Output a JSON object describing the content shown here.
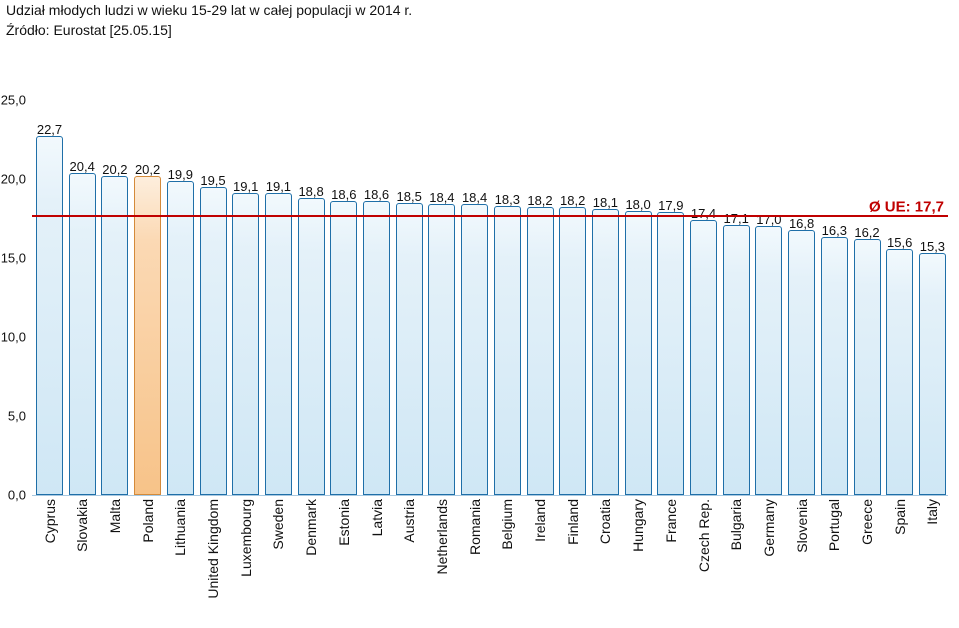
{
  "title": "Udział młodych ludzi w wieku 15-29 lat w całej populacji w 2014 r.",
  "subtitle": "Źródło: Eurostat [25.05.15]",
  "chart": {
    "type": "bar",
    "ymax": 25.0,
    "yticks": [
      25.0,
      20.0,
      15.0,
      10.0,
      5.0,
      0.0
    ],
    "ytick_labels": [
      "25,0",
      "20,0",
      "15,0",
      "10,0",
      "5,0",
      "0,0"
    ],
    "bar_group_width": 32.7,
    "bar_inner_width": 27,
    "bar_offset_left": 4,
    "colors": {
      "bar_border": "#1f6fa8",
      "bar_fill_top": "#f2f9fd",
      "bar_fill_mid": "#e4f1f9",
      "bar_fill_bot": "#cfe7f5",
      "highlight_border": "#d48a3a",
      "highlight_fill_top": "#fdeedd",
      "highlight_fill_mid": "#fbd9b4",
      "highlight_fill_bot": "#f7c389",
      "reference": "#c00000",
      "text": "#111111",
      "background": "#ffffff"
    },
    "value_fontsize": 13,
    "category_fontsize": 14
  },
  "reference": {
    "value": 17.7,
    "label": "Ø UE: 17,7"
  },
  "series": [
    {
      "country": "Cyprus",
      "value": 22.7,
      "label": "22,7",
      "highlight": false
    },
    {
      "country": "Slovakia",
      "value": 20.4,
      "label": "20,4",
      "highlight": false
    },
    {
      "country": "Malta",
      "value": 20.2,
      "label": "20,2",
      "highlight": false
    },
    {
      "country": "Poland",
      "value": 20.2,
      "label": "20,2",
      "highlight": true
    },
    {
      "country": "Lithuania",
      "value": 19.9,
      "label": "19,9",
      "highlight": false
    },
    {
      "country": "United Kingdom",
      "value": 19.5,
      "label": "19,5",
      "highlight": false
    },
    {
      "country": "Luxembourg",
      "value": 19.1,
      "label": "19,1",
      "highlight": false
    },
    {
      "country": "Sweden",
      "value": 19.1,
      "label": "19,1",
      "highlight": false
    },
    {
      "country": "Denmark",
      "value": 18.8,
      "label": "18,8",
      "highlight": false
    },
    {
      "country": "Estonia",
      "value": 18.6,
      "label": "18,6",
      "highlight": false
    },
    {
      "country": "Latvia",
      "value": 18.6,
      "label": "18,6",
      "highlight": false
    },
    {
      "country": "Austria",
      "value": 18.5,
      "label": "18,5",
      "highlight": false
    },
    {
      "country": "Netherlands",
      "value": 18.4,
      "label": "18,4",
      "highlight": false
    },
    {
      "country": "Romania",
      "value": 18.4,
      "label": "18,4",
      "highlight": false
    },
    {
      "country": "Belgium",
      "value": 18.3,
      "label": "18,3",
      "highlight": false
    },
    {
      "country": "Ireland",
      "value": 18.2,
      "label": "18,2",
      "highlight": false
    },
    {
      "country": "Finland",
      "value": 18.2,
      "label": "18,2",
      "highlight": false
    },
    {
      "country": "Croatia",
      "value": 18.1,
      "label": "18,1",
      "highlight": false
    },
    {
      "country": "Hungary",
      "value": 18.0,
      "label": "18,0",
      "highlight": false
    },
    {
      "country": "France",
      "value": 17.9,
      "label": "17,9",
      "highlight": false
    },
    {
      "country": "Czech Rep.",
      "value": 17.4,
      "label": "17,4",
      "highlight": false
    },
    {
      "country": "Bulgaria",
      "value": 17.1,
      "label": "17,1",
      "highlight": false
    },
    {
      "country": "Germany",
      "value": 17.0,
      "label": "17,0",
      "highlight": false
    },
    {
      "country": "Slovenia",
      "value": 16.8,
      "label": "16,8",
      "highlight": false
    },
    {
      "country": "Portugal",
      "value": 16.3,
      "label": "16,3",
      "highlight": false
    },
    {
      "country": "Greece",
      "value": 16.2,
      "label": "16,2",
      "highlight": false
    },
    {
      "country": "Spain",
      "value": 15.6,
      "label": "15,6",
      "highlight": false
    },
    {
      "country": "Italy",
      "value": 15.3,
      "label": "15,3",
      "highlight": false
    }
  ]
}
